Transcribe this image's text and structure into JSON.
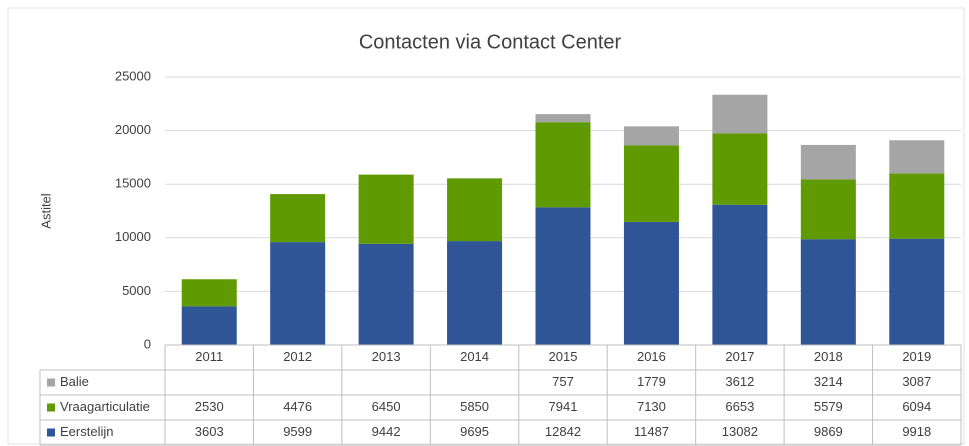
{
  "chart_data": {
    "type": "stacked_bar",
    "title": "Contacten via Contact Center",
    "y_label": "Astitel",
    "categories": [
      "2011",
      "2012",
      "2013",
      "2014",
      "2015",
      "2016",
      "2017",
      "2018",
      "2019"
    ],
    "series": [
      {
        "name": "Eerstelijn",
        "color": "#2f5597",
        "values": [
          3603,
          9599,
          9442,
          9695,
          12842,
          11487,
          13082,
          9869,
          9918
        ]
      },
      {
        "name": "Vraagarticulatie",
        "color": "#5e9a00",
        "values": [
          2530,
          4476,
          6450,
          5850,
          7941,
          7130,
          6653,
          5579,
          6094
        ]
      },
      {
        "name": "Balie",
        "color": "#a5a5a5",
        "values": [
          null,
          null,
          null,
          null,
          757,
          1779,
          3612,
          3214,
          3087
        ]
      }
    ],
    "ylim": [
      0,
      25000
    ],
    "yticks": [
      0,
      5000,
      10000,
      15000,
      20000,
      25000
    ],
    "grid": true,
    "data_table": true
  }
}
